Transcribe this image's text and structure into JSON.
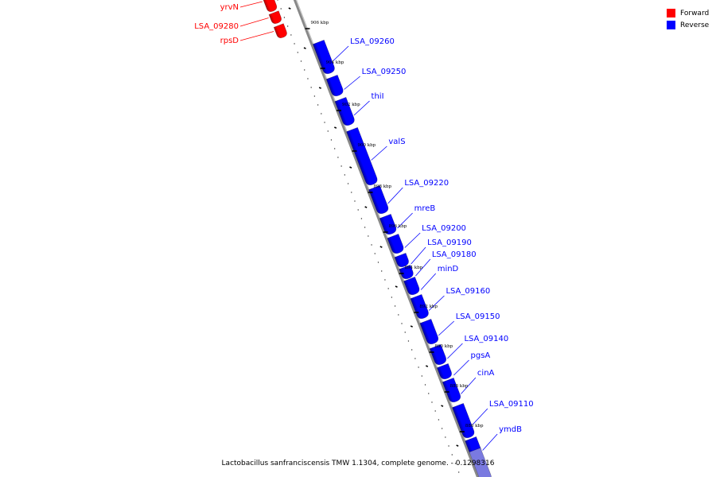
{
  "colors": {
    "forward": "#ff0000",
    "reverse": "#0000ff",
    "forward_dark": "#b00000",
    "reverse_dark": "#0000a0",
    "backbone": "#888888"
  },
  "legend": {
    "forward": "Forward",
    "reverse": "Reverse"
  },
  "caption": "Lactobacillus sanfranciscensis TMW 1.1304, complete genome. - 0.1298316",
  "forward_genes": [
    {
      "name": "yrvN"
    },
    {
      "name": "LSA_09280"
    },
    {
      "name": "rpsD"
    }
  ],
  "reverse_genes": [
    {
      "name": "LSA_09260"
    },
    {
      "name": "LSA_09250"
    },
    {
      "name": "thiI"
    },
    {
      "name": "valS"
    },
    {
      "name": "LSA_09220"
    },
    {
      "name": "mreB"
    },
    {
      "name": "LSA_09200"
    },
    {
      "name": "LSA_09190"
    },
    {
      "name": "LSA_09180"
    },
    {
      "name": "minD"
    },
    {
      "name": "LSA_09160"
    },
    {
      "name": "LSA_09150"
    },
    {
      "name": "LSA_09140"
    },
    {
      "name": "pgsA"
    },
    {
      "name": "cinA"
    },
    {
      "name": "LSA_09110"
    },
    {
      "name": "ymdB"
    }
  ],
  "kbp_ticks": [
    "906 kbp",
    "904 kbp",
    "902 kbp",
    "900 kbp",
    "898 kbp",
    "896 kbp",
    "894 kbp",
    "892 kbp",
    "890 kbp",
    "888 kbp",
    "886 kbp"
  ]
}
